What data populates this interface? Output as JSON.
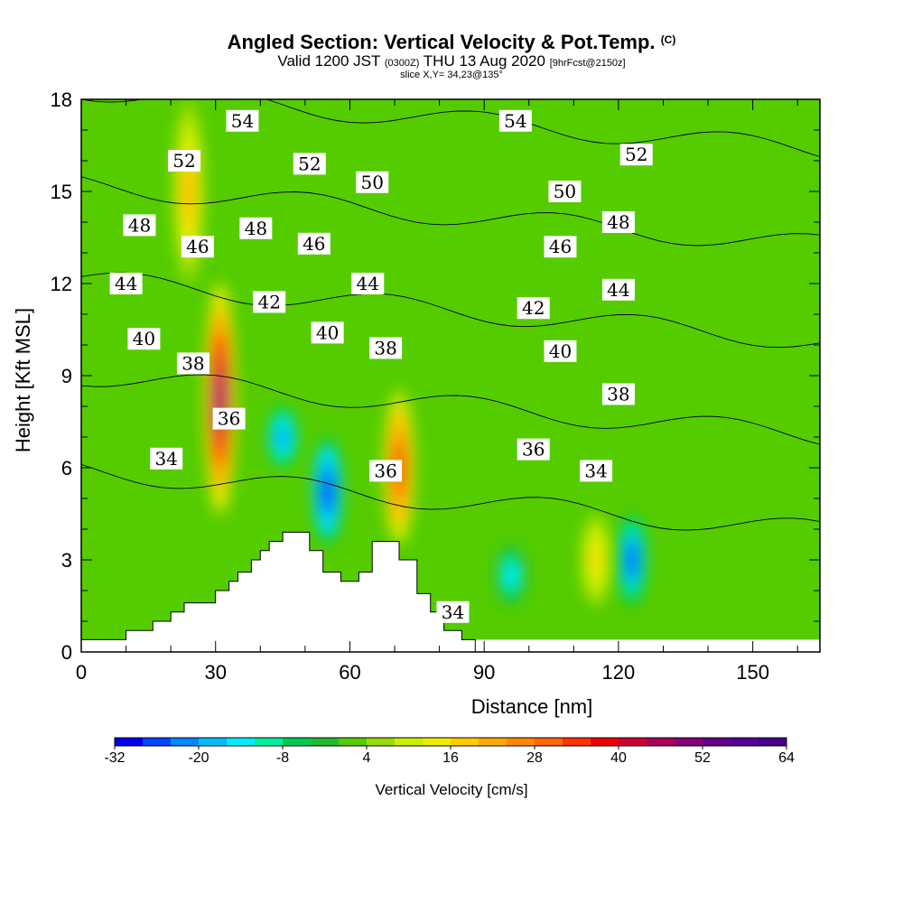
{
  "header": {
    "title": "Angled Section: Vertical Velocity & Pot.Temp.",
    "title_mark": "(C)",
    "valid_prefix": "Valid 1200 JST",
    "valid_utc": "(0300Z)",
    "valid_date": "THU 13 Aug 2020",
    "forecast": "[9hrFcst@2150z]",
    "slice": "slice X,Y= 34,23@135°"
  },
  "chart_data": {
    "type": "heatmap",
    "xlabel": "Distance [nm]",
    "ylabel": "Height [Kft MSL]",
    "xlim": [
      0,
      165
    ],
    "ylim": [
      0,
      18
    ],
    "x_ticks": [
      0,
      30,
      60,
      90,
      120,
      150
    ],
    "y_ticks": [
      0,
      3,
      6,
      9,
      12,
      15,
      18
    ],
    "colorbar": {
      "title": "Vertical Velocity [cm/s]",
      "tick_labels": [
        -32,
        -20,
        -8,
        4,
        16,
        28,
        40,
        52,
        64
      ],
      "range": [
        -32,
        64
      ],
      "step": 4,
      "colors": [
        "#0000ee",
        "#0044ff",
        "#0088ff",
        "#00bbff",
        "#00eeff",
        "#00ee99",
        "#00cc55",
        "#22bb33",
        "#55cc00",
        "#99dd00",
        "#ccee00",
        "#eeee00",
        "#ffcc00",
        "#ffaa00",
        "#ff8800",
        "#ff6600",
        "#ff3300",
        "#ee0000",
        "#cc0033",
        "#aa0055",
        "#880077",
        "#660088",
        "#550099",
        "#440088"
      ]
    },
    "wind_features": [
      {
        "x": 31,
        "y0": 4.5,
        "y1": 12,
        "w_max": 52,
        "sign": "up"
      },
      {
        "x": 24,
        "y0": 12,
        "y1": 18,
        "w_max": 20,
        "sign": "up"
      },
      {
        "x": 71,
        "y0": 3.5,
        "y1": 8.5,
        "w_max": 36,
        "sign": "up"
      },
      {
        "x": 55,
        "y0": 3.5,
        "y1": 7,
        "w_max": -32,
        "sign": "down"
      },
      {
        "x": 45,
        "y0": 6,
        "y1": 8,
        "w_max": -24,
        "sign": "down"
      },
      {
        "x": 123,
        "y0": 1.5,
        "y1": 4.5,
        "w_max": -28,
        "sign": "down"
      },
      {
        "x": 96,
        "y0": 1.5,
        "y1": 3.5,
        "w_max": -16,
        "sign": "down"
      },
      {
        "x": 115,
        "y0": 1.5,
        "y1": 4.5,
        "w_max": 16,
        "sign": "up"
      }
    ],
    "terrain": [
      [
        0,
        0.4
      ],
      [
        10,
        0.4
      ],
      [
        10,
        0.7
      ],
      [
        16,
        0.7
      ],
      [
        16,
        1.0
      ],
      [
        20,
        1.0
      ],
      [
        20,
        1.3
      ],
      [
        23,
        1.3
      ],
      [
        23,
        1.6
      ],
      [
        30,
        1.6
      ],
      [
        30,
        2.0
      ],
      [
        33,
        2.0
      ],
      [
        33,
        2.3
      ],
      [
        35,
        2.3
      ],
      [
        35,
        2.6
      ],
      [
        38,
        2.6
      ],
      [
        38,
        3.0
      ],
      [
        40,
        3.0
      ],
      [
        40,
        3.3
      ],
      [
        42,
        3.3
      ],
      [
        42,
        3.6
      ],
      [
        45,
        3.6
      ],
      [
        45,
        3.9
      ],
      [
        51,
        3.9
      ],
      [
        51,
        3.3
      ],
      [
        54,
        3.3
      ],
      [
        54,
        2.6
      ],
      [
        58,
        2.6
      ],
      [
        58,
        2.3
      ],
      [
        62,
        2.3
      ],
      [
        62,
        2.6
      ],
      [
        65,
        2.6
      ],
      [
        65,
        3.6
      ],
      [
        71,
        3.6
      ],
      [
        71,
        3.0
      ],
      [
        75,
        3.0
      ],
      [
        75,
        1.9
      ],
      [
        78,
        1.9
      ],
      [
        78,
        1.3
      ],
      [
        81,
        1.3
      ],
      [
        81,
        0.7
      ],
      [
        85,
        0.7
      ],
      [
        85,
        0.4
      ],
      [
        88,
        0.4
      ],
      [
        88,
        0
      ]
    ],
    "isentropes": [
      {
        "value": 34,
        "label_pos": [
          [
            19,
            6.3
          ],
          [
            115,
            5.9
          ],
          [
            83,
            1.3
          ]
        ]
      },
      {
        "value": 36,
        "label_pos": [
          [
            33,
            7.6
          ],
          [
            68,
            5.9
          ],
          [
            101,
            6.6
          ]
        ]
      },
      {
        "value": 38,
        "label_pos": [
          [
            25,
            9.4
          ],
          [
            68,
            9.9
          ],
          [
            120,
            8.4
          ]
        ]
      },
      {
        "value": 40,
        "label_pos": [
          [
            14,
            10.2
          ],
          [
            55,
            10.4
          ],
          [
            107,
            9.8
          ]
        ]
      },
      {
        "value": 42,
        "label_pos": [
          [
            42,
            11.4
          ],
          [
            101,
            11.2
          ]
        ]
      },
      {
        "value": 44,
        "label_pos": [
          [
            10,
            12.0
          ],
          [
            64,
            12.0
          ],
          [
            120,
            11.8
          ]
        ]
      },
      {
        "value": 46,
        "label_pos": [
          [
            26,
            13.2
          ],
          [
            52,
            13.3
          ],
          [
            107,
            13.2
          ]
        ]
      },
      {
        "value": 48,
        "label_pos": [
          [
            13,
            13.9
          ],
          [
            39,
            13.8
          ],
          [
            120,
            14.0
          ]
        ]
      },
      {
        "value": 50,
        "label_pos": [
          [
            65,
            15.3
          ],
          [
            108,
            15.0
          ]
        ]
      },
      {
        "value": 52,
        "label_pos": [
          [
            23,
            16.0
          ],
          [
            51,
            15.9
          ],
          [
            124,
            16.2
          ]
        ]
      },
      {
        "value": 54,
        "label_pos": [
          [
            36,
            17.3
          ],
          [
            97,
            17.3
          ]
        ]
      }
    ]
  }
}
